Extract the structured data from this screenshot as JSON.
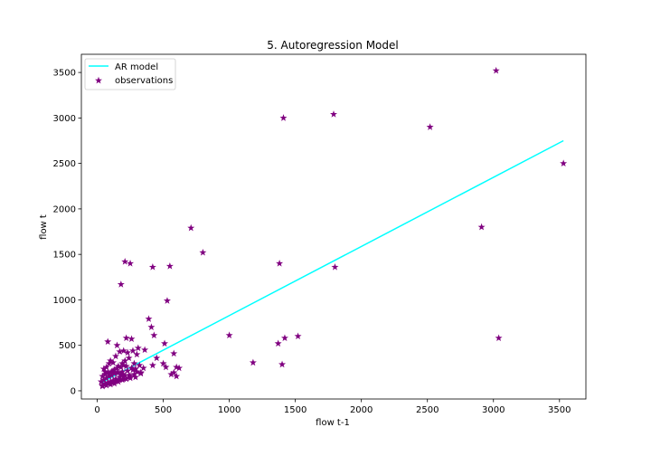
{
  "chart_data": {
    "type": "scatter",
    "title": "5. Autoregression Model",
    "xlabel": "flow t-1",
    "ylabel": "flow t",
    "xlim": [
      -120,
      3700
    ],
    "ylim": [
      -90,
      3700
    ],
    "xticks": [
      0,
      500,
      1000,
      1500,
      2000,
      2500,
      3000,
      3500
    ],
    "yticks": [
      0,
      500,
      1000,
      1500,
      2000,
      2500,
      3000,
      3500
    ],
    "grid": false,
    "legend_position": "top-left",
    "series": [
      {
        "name": "AR model",
        "kind": "line",
        "color": "#00ffff",
        "x": [
          30,
          3530
        ],
        "y": [
          90,
          2750
        ]
      },
      {
        "name": "observations",
        "kind": "scatter",
        "marker": "star",
        "color": "#800080",
        "x": [
          3020,
          3530,
          1410,
          1790,
          2520,
          2910,
          1800,
          3040,
          710,
          800,
          210,
          250,
          420,
          550,
          1380,
          180,
          530,
          1000,
          1180,
          1370,
          1400,
          1420,
          1520,
          390,
          430,
          410,
          510,
          580,
          600,
          620,
          560,
          580,
          600,
          360,
          300,
          420,
          450,
          500,
          520,
          80,
          150,
          220,
          260,
          100,
          140,
          170,
          200,
          230,
          270,
          310,
          50,
          70,
          90,
          120,
          160,
          190,
          210,
          240,
          280,
          320,
          350,
          40,
          60,
          80,
          110,
          130,
          150,
          180,
          200,
          220,
          260,
          290,
          30,
          50,
          70,
          90,
          110,
          130,
          160,
          190,
          230,
          270,
          300,
          330,
          40,
          60,
          80,
          100,
          120,
          140,
          170,
          200,
          240,
          280,
          330,
          40,
          70,
          100,
          130,
          160,
          190,
          220,
          250,
          60,
          90,
          120,
          150,
          180,
          210,
          250,
          290,
          40,
          60,
          85,
          110,
          140,
          170,
          200
        ],
        "y": [
          3520,
          2500,
          3000,
          3040,
          2900,
          1800,
          1360,
          580,
          1790,
          1520,
          1420,
          1400,
          1360,
          1370,
          1400,
          1170,
          990,
          610,
          310,
          520,
          290,
          580,
          600,
          790,
          610,
          700,
          520,
          410,
          260,
          250,
          180,
          200,
          160,
          450,
          400,
          280,
          360,
          300,
          260,
          540,
          500,
          580,
          570,
          330,
          380,
          430,
          440,
          420,
          440,
          470,
          240,
          260,
          300,
          310,
          270,
          300,
          330,
          360,
          300,
          280,
          250,
          160,
          180,
          200,
          210,
          230,
          250,
          260,
          280,
          270,
          250,
          240,
          100,
          120,
          140,
          160,
          170,
          190,
          200,
          210,
          220,
          230,
          210,
          200,
          60,
          80,
          90,
          100,
          110,
          130,
          150,
          160,
          170,
          180,
          190,
          50,
          60,
          70,
          80,
          100,
          120,
          130,
          140,
          210,
          190,
          220,
          200,
          180,
          170,
          160,
          150,
          60,
          70,
          80,
          90,
          110,
          120,
          130
        ]
      }
    ]
  }
}
